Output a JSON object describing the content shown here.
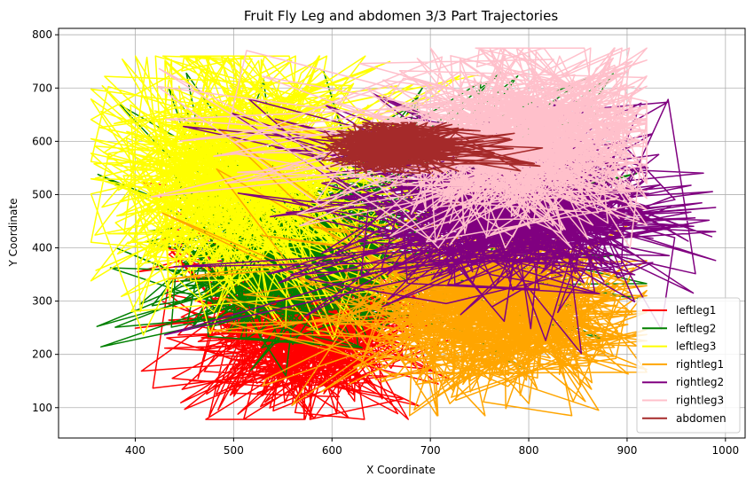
{
  "chart_data": {
    "type": "line",
    "title": "Fruit Fly Leg and abdomen 3/3 Part Trajectories",
    "xlabel": "X Coordinate",
    "ylabel": "Y Coordinate",
    "xlim": [
      322,
      1020
    ],
    "ylim": [
      43,
      812
    ],
    "xticks": [
      400,
      500,
      600,
      700,
      800,
      900,
      1000
    ],
    "yticks": [
      100,
      200,
      300,
      400,
      500,
      600,
      700,
      800
    ],
    "grid": true,
    "legend_position": "lower-right",
    "series": [
      {
        "name": "leftleg1",
        "color": "#ff0000",
        "x_range": [
          400,
          720
        ],
        "y_range": [
          78,
          550
        ],
        "center": [
          575,
          260
        ],
        "spread": [
          55,
          80
        ]
      },
      {
        "name": "leftleg2",
        "color": "#008000",
        "x_range": [
          355,
          935
        ],
        "y_range": [
          160,
          740
        ],
        "center": [
          565,
          380
        ],
        "spread": [
          60,
          75
        ]
      },
      {
        "name": "leftleg3",
        "color": "#ffff00",
        "x_range": [
          355,
          760
        ],
        "y_range": [
          220,
          760
        ],
        "center": [
          500,
          540
        ],
        "spread": [
          70,
          110
        ]
      },
      {
        "name": "rightleg1",
        "color": "#ffa500",
        "x_range": [
          415,
          920
        ],
        "y_range": [
          85,
          640
        ],
        "center": [
          770,
          280
        ],
        "spread": [
          70,
          80
        ]
      },
      {
        "name": "rightleg2",
        "color": "#800080",
        "x_range": [
          420,
          990
        ],
        "y_range": [
          190,
          690
        ],
        "center": [
          790,
          470
        ],
        "spread": [
          75,
          70
        ]
      },
      {
        "name": "rightleg3",
        "color": "#ffc0cb",
        "x_range": [
          410,
          920
        ],
        "y_range": [
          400,
          775
        ],
        "center": [
          800,
          600
        ],
        "spread": [
          70,
          80
        ]
      },
      {
        "name": "abdomen",
        "color": "#a52a2a",
        "x_range": [
          590,
          820
        ],
        "y_range": [
          540,
          635
        ],
        "center": [
          660,
          590
        ],
        "spread": [
          28,
          22
        ]
      }
    ]
  }
}
